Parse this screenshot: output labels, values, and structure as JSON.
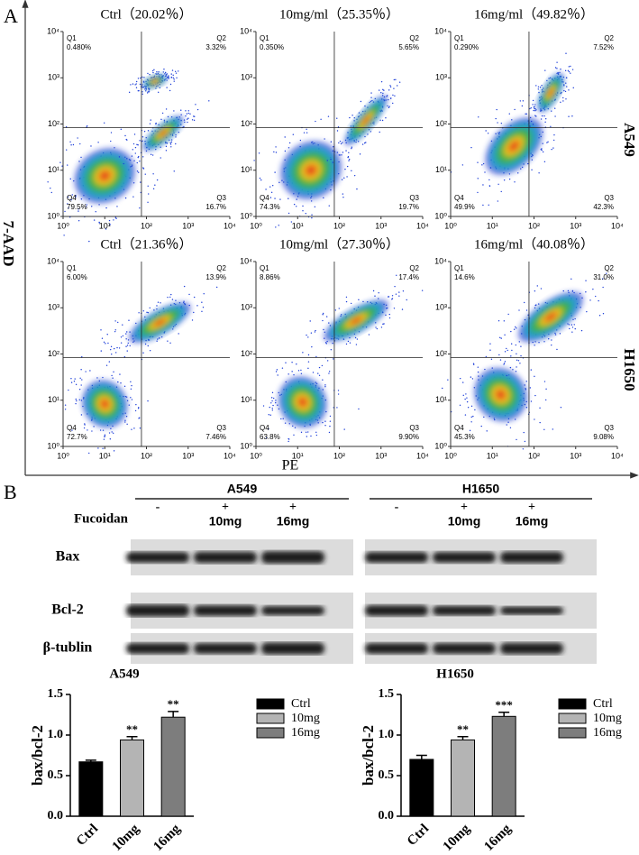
{
  "panel_a": {
    "label": "A",
    "y_axis_label": "7-AAD",
    "x_axis_label": "PE",
    "quadrant_names": [
      "Q1",
      "Q2",
      "Q3",
      "Q4"
    ],
    "axis_ticks": [
      "10⁰",
      "10¹",
      "10²",
      "10³",
      "10⁴"
    ],
    "rows": [
      {
        "name": "A549",
        "plots": [
          {
            "title": "Ctrl（20.02％）",
            "quadrants": [
              "0.480%",
              "3.32%",
              "16.7%",
              "79.5%"
            ]
          },
          {
            "title": "10mg/ml（25.35％）",
            "quadrants": [
              "0.350%",
              "5.65%",
              "19.7%",
              "74.3%"
            ]
          },
          {
            "title": "16mg/ml（49.82％）",
            "quadrants": [
              "0.290%",
              "7.52%",
              "42.3%",
              "49.9%"
            ]
          }
        ]
      },
      {
        "name": "H1650",
        "plots": [
          {
            "title": "Ctrl（21.36％）",
            "quadrants": [
              "6.00%",
              "13.9%",
              "7.46%",
              "72.7%"
            ]
          },
          {
            "title": "10mg/ml（27.30％）",
            "quadrants": [
              "8.86%",
              "17.4%",
              "9.90%",
              "63.8%"
            ]
          },
          {
            "title": "16mg/ml（40.08％）",
            "quadrants": [
              "14.6%",
              "31.0%",
              "9.08%",
              "45.3%"
            ]
          }
        ]
      }
    ]
  },
  "panel_b": {
    "label": "B",
    "treatment": "Fucoidan",
    "groups": [
      {
        "name": "A549",
        "signs": [
          "-",
          "+",
          "+"
        ],
        "doses": [
          null,
          "10mg",
          "16mg"
        ]
      },
      {
        "name": "H1650",
        "signs": [
          "-",
          "+",
          "+"
        ],
        "doses": [
          null,
          "10mg",
          "16mg"
        ]
      }
    ],
    "proteins": [
      "Bax",
      "Bcl-2",
      "β-tublin"
    ]
  },
  "chart_data": [
    {
      "type": "bar",
      "title": "A549",
      "y_label": "bax/bcl-2",
      "categories": [
        "Ctrl",
        "10mg",
        "16mg"
      ],
      "values": [
        0.67,
        0.94,
        1.22
      ],
      "errors": [
        0.02,
        0.04,
        0.07
      ],
      "significance": [
        null,
        "**",
        "**"
      ],
      "colors": [
        "#000000",
        "#b4b4b4",
        "#7d7d7d"
      ],
      "ylim": [
        0,
        1.5
      ],
      "yticks": [
        {
          "value": 0,
          "label": "0.0"
        },
        0.5,
        {
          "value": 1,
          "label": "1.0"
        },
        1.5
      ]
    },
    {
      "type": "bar",
      "title": "H1650",
      "y_label": "bax/bcl-2",
      "categories": [
        "Ctrl",
        "10mg",
        "16mg"
      ],
      "values": [
        0.7,
        0.94,
        1.23
      ],
      "errors": [
        0.05,
        0.04,
        0.05
      ],
      "significance": [
        null,
        "**",
        "***"
      ],
      "colors": [
        "#000000",
        "#b4b4b4",
        "#7d7d7d"
      ],
      "ylim": [
        0,
        1.5
      ],
      "yticks": [
        {
          "value": 0,
          "label": "0.0"
        },
        0.5,
        {
          "value": 1,
          "label": "1.0"
        },
        1.5
      ]
    }
  ]
}
